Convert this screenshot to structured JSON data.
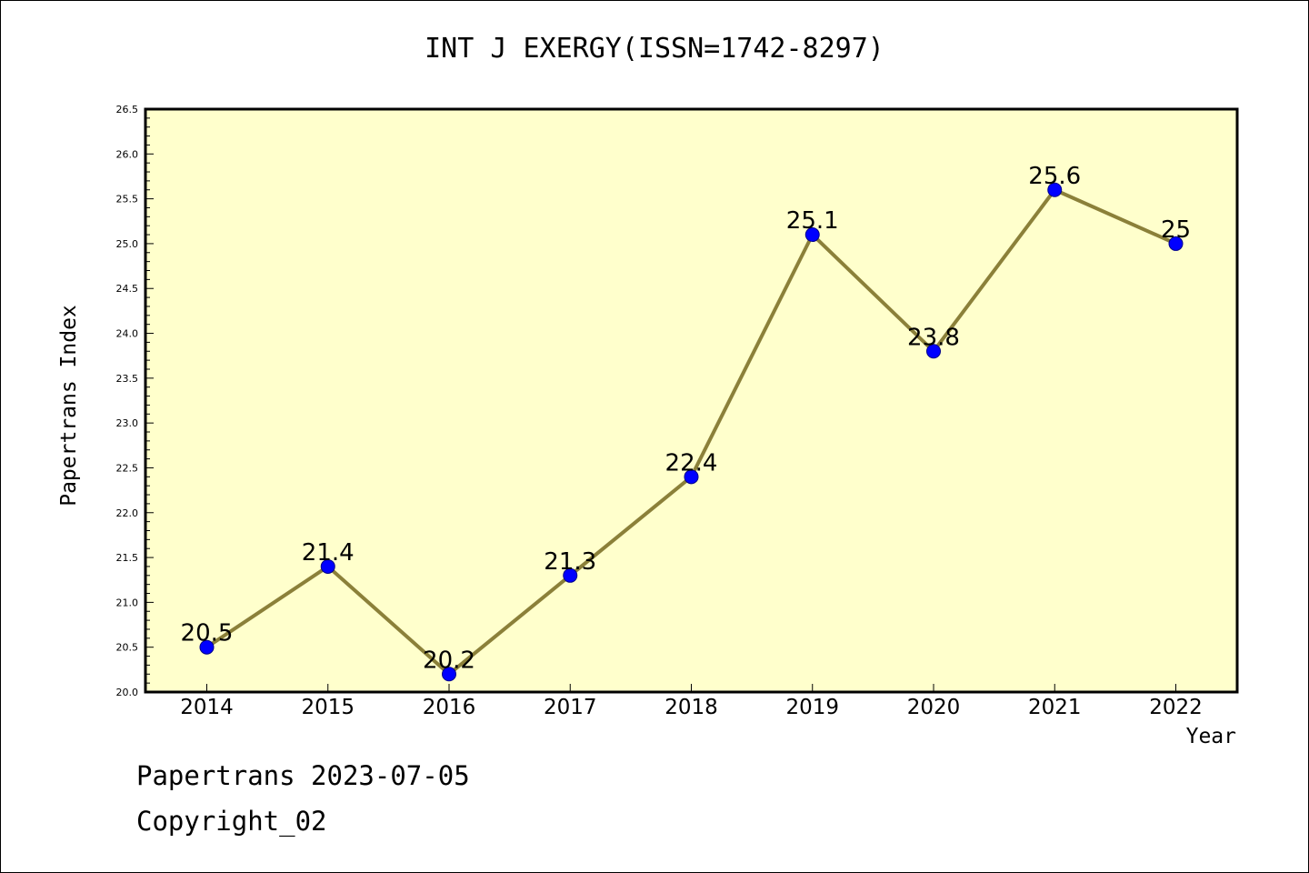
{
  "chart_data": {
    "type": "line",
    "title": "INT J EXERGY(ISSN=1742-8297)",
    "xlabel": "Year",
    "ylabel": "Papertrans Index",
    "ylim": [
      20.0,
      26.5
    ],
    "y_ticks": [
      "20.0",
      "20.5",
      "21.0",
      "21.5",
      "22.0",
      "22.5",
      "23.0",
      "23.5",
      "24.0",
      "24.5",
      "25.0",
      "25.5",
      "26.0",
      "26.5"
    ],
    "categories": [
      "2014",
      "2015",
      "2016",
      "2017",
      "2018",
      "2019",
      "2020",
      "2021",
      "2022"
    ],
    "values": [
      20.5,
      21.4,
      20.2,
      21.3,
      22.4,
      25.1,
      23.8,
      25.6,
      25
    ],
    "data_labels": [
      "20.5",
      "21.4",
      "20.2",
      "21.3",
      "22.4",
      "25.1",
      "23.8",
      "25.6",
      "25"
    ],
    "colors": {
      "plot_bg": "#ffffcc",
      "line": "#8b8039",
      "marker": "#0000ff"
    },
    "grid": false,
    "legend": "none"
  },
  "footer": {
    "line1": "Papertrans 2023-07-05",
    "line2": "Copyright_02"
  }
}
